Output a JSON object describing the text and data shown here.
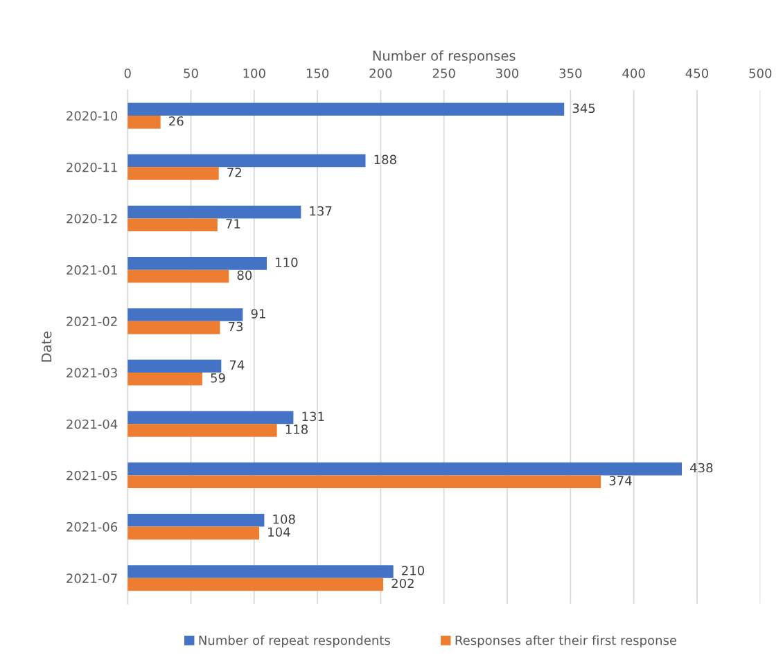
{
  "chart_data": {
    "type": "bar",
    "orientation": "horizontal",
    "xlabel": "Number of responses",
    "ylabel": "Date",
    "categories": [
      "2020-10",
      "2020-11",
      "2020-12",
      "2021-01",
      "2021-02",
      "2021-03",
      "2021-04",
      "2021-05",
      "2021-06",
      "2021-07"
    ],
    "series": [
      {
        "name": "Number of repeat respondents",
        "color": "#4472c4",
        "values": [
          345,
          188,
          137,
          110,
          91,
          74,
          131,
          438,
          108,
          210
        ]
      },
      {
        "name": "Responses after their first response",
        "color": "#ed7d31",
        "values": [
          26,
          72,
          71,
          80,
          73,
          59,
          118,
          374,
          104,
          202
        ]
      }
    ],
    "xlim": [
      0,
      500
    ],
    "xticks": [
      0,
      50,
      100,
      150,
      200,
      250,
      300,
      350,
      400,
      450,
      500
    ],
    "grid": "x",
    "legend": "bottom",
    "data_labels": true
  }
}
